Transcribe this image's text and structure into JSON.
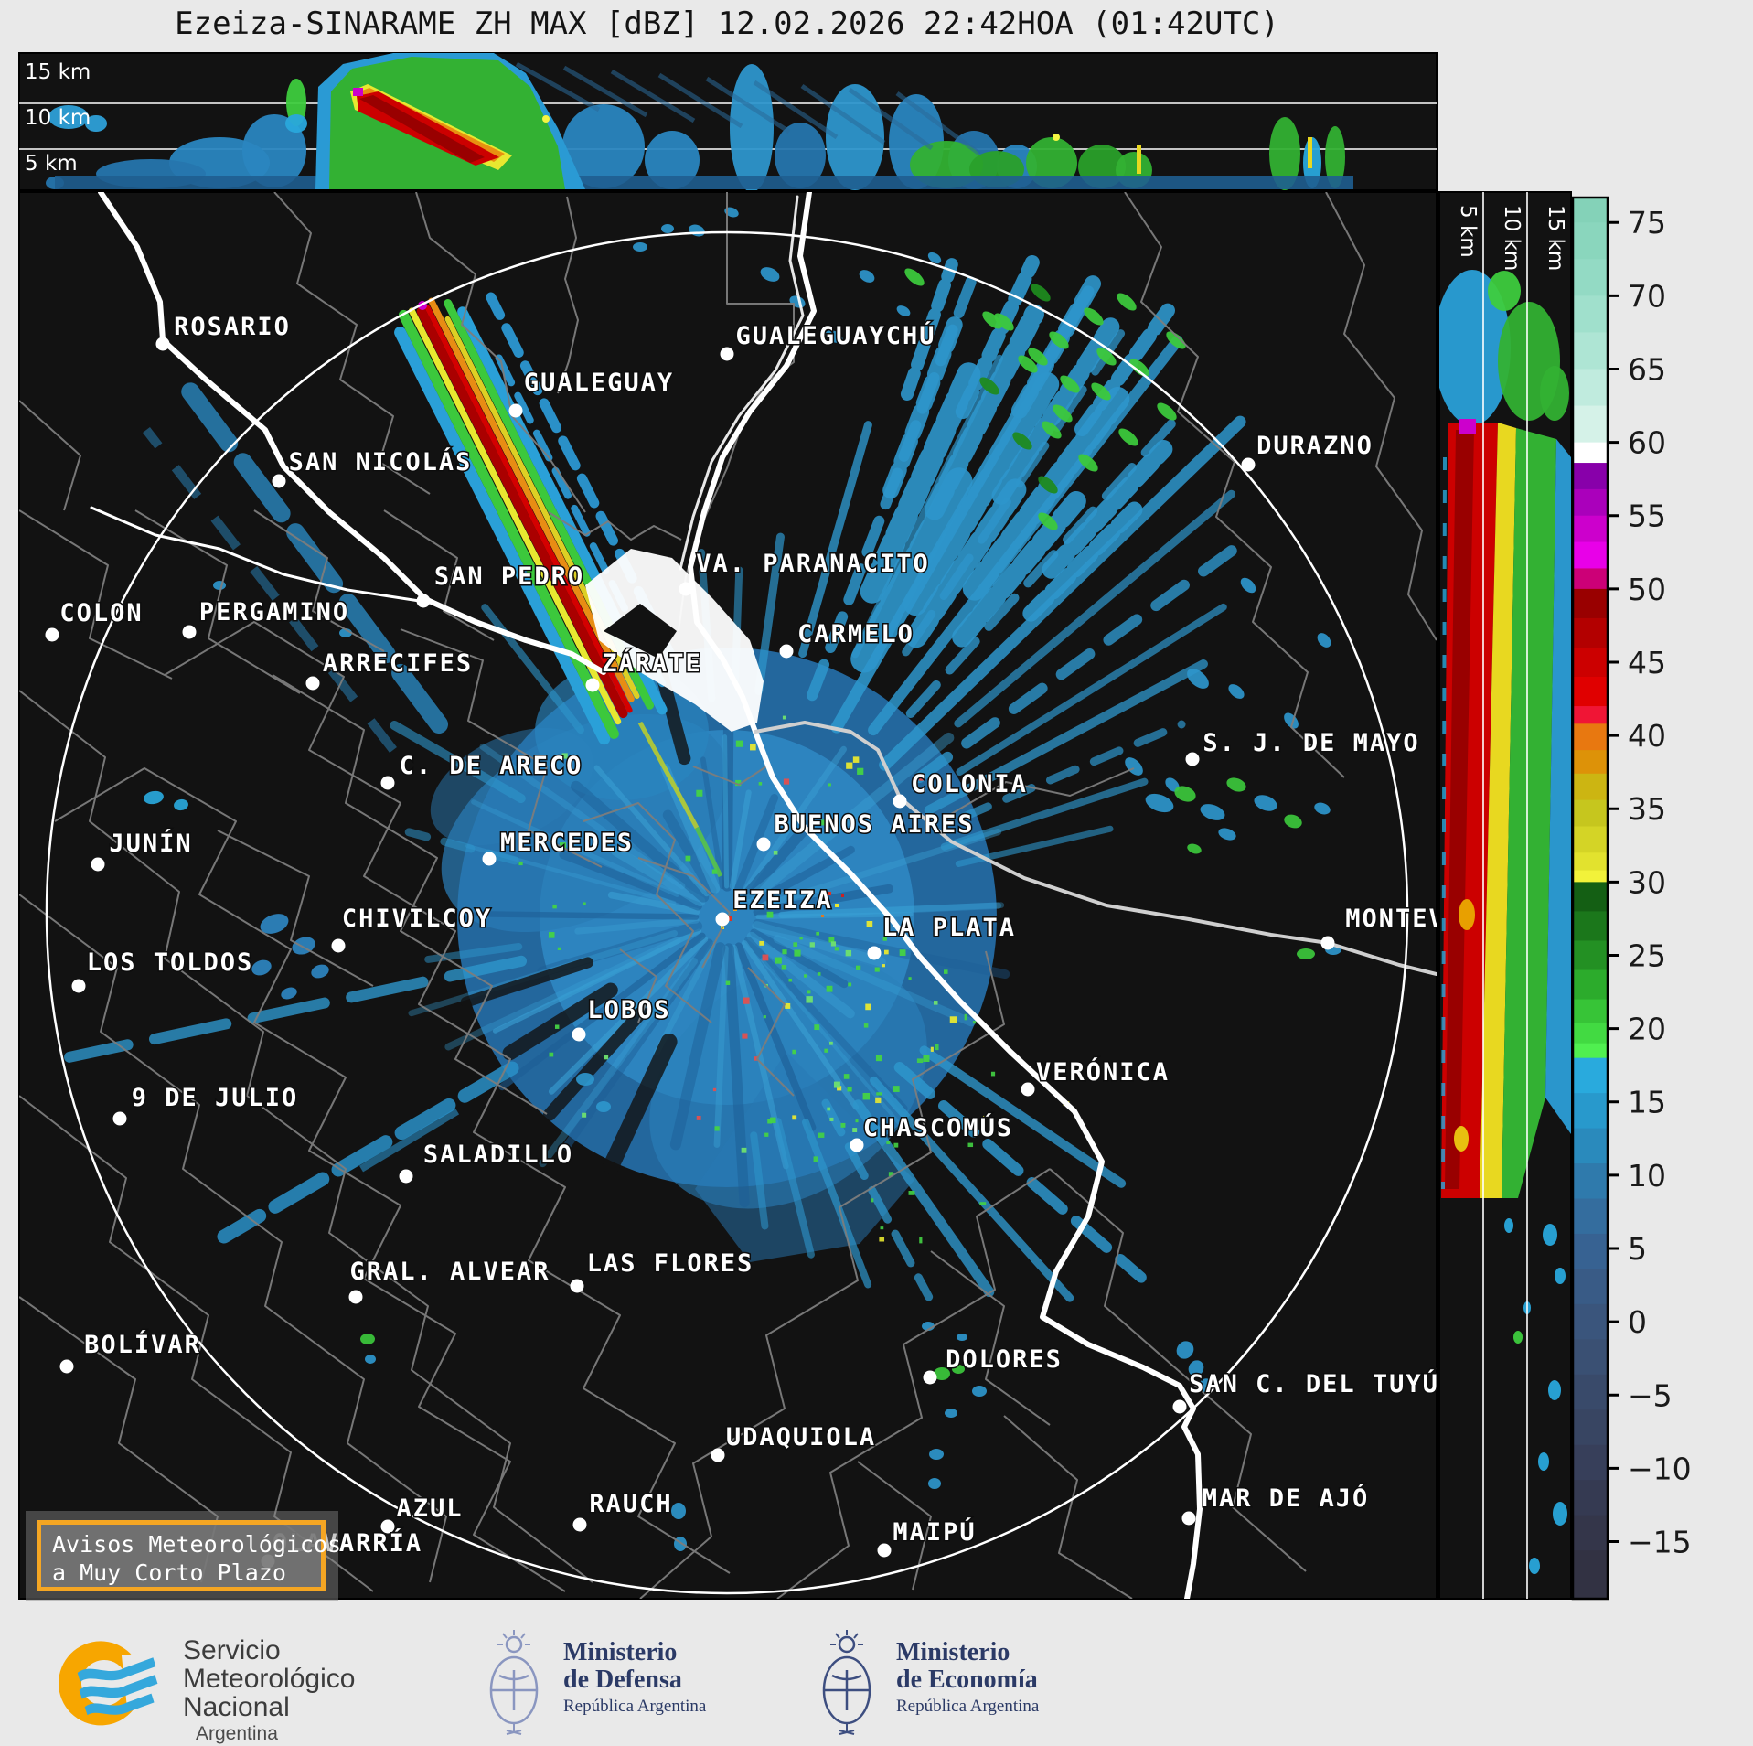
{
  "title": "Ezeiza-SINARAME ZH MAX [dBZ] 12.02.2026 22:42HOA (01:42UTC)",
  "top_profile": {
    "height_labels": [
      "15 km",
      "10 km",
      "5 km"
    ]
  },
  "side_profile": {
    "height_labels": [
      "5 km",
      "10 km",
      "15 km"
    ]
  },
  "colorbar": {
    "unit": "dBZ",
    "ticks": [
      75,
      70,
      65,
      60,
      55,
      50,
      45,
      40,
      35,
      30,
      25,
      20,
      15,
      10,
      5,
      0,
      -5,
      -10,
      -15
    ],
    "segments": [
      [
        76.7,
        75,
        "#84d2b8"
      ],
      [
        75,
        72.5,
        "#8ad6bd"
      ],
      [
        72.5,
        70,
        "#93dac4"
      ],
      [
        70,
        67.5,
        "#a0e0cc"
      ],
      [
        67.5,
        65,
        "#aee5d4"
      ],
      [
        65,
        62.5,
        "#c0ebde"
      ],
      [
        62.5,
        60,
        "#d5f2e8"
      ],
      [
        60,
        58.6,
        "#ffffff"
      ],
      [
        58.6,
        56.8,
        "#8800aa"
      ],
      [
        56.8,
        55,
        "#aa00bb"
      ],
      [
        55,
        53.2,
        "#cc00cc"
      ],
      [
        53.2,
        51.4,
        "#e800e8"
      ],
      [
        51.4,
        50,
        "#cc0077"
      ],
      [
        50,
        48,
        "#990000"
      ],
      [
        48,
        46,
        "#b30000"
      ],
      [
        46,
        44,
        "#cc0000"
      ],
      [
        44,
        42,
        "#e00000"
      ],
      [
        42,
        40.8,
        "#f01535"
      ],
      [
        40.8,
        39,
        "#e87810"
      ],
      [
        39,
        37.4,
        "#dd9208"
      ],
      [
        37.4,
        35.6,
        "#ccb512"
      ],
      [
        35.6,
        33.8,
        "#c6c61e"
      ],
      [
        33.8,
        32,
        "#d4d426"
      ],
      [
        32,
        30.8,
        "#e2e22e"
      ],
      [
        30.8,
        30,
        "#f2f23a"
      ],
      [
        30,
        28,
        "#145f14"
      ],
      [
        28,
        26,
        "#1b771b"
      ],
      [
        26,
        24,
        "#239023"
      ],
      [
        24,
        22,
        "#2cab2c"
      ],
      [
        22,
        20.4,
        "#37c437"
      ],
      [
        20.4,
        19,
        "#42da42"
      ],
      [
        19,
        18,
        "#50ef50"
      ],
      [
        18,
        15.6,
        "#29aadd"
      ],
      [
        15.6,
        13.2,
        "#2899cc"
      ],
      [
        13.2,
        10.8,
        "#2a8abc"
      ],
      [
        10.8,
        8.4,
        "#2f7aac"
      ],
      [
        8.4,
        6,
        "#346d9e"
      ],
      [
        6,
        3.6,
        "#376292"
      ],
      [
        3.6,
        1.2,
        "#395b86"
      ],
      [
        1.2,
        -1.2,
        "#3a557c"
      ],
      [
        -1.2,
        -3.6,
        "#3a5073"
      ],
      [
        -3.6,
        -6,
        "#394a6a"
      ],
      [
        -6,
        -8.4,
        "#384562"
      ],
      [
        -8.4,
        -10.8,
        "#373f5a"
      ],
      [
        -10.8,
        -13.2,
        "#353a52"
      ],
      [
        -13.2,
        -15.6,
        "#34364a"
      ],
      [
        -15.6,
        -18.9,
        "#323243"
      ]
    ]
  },
  "map": {
    "cities": [
      {
        "name": "ROSARIO",
        "dot": [
          178,
          376
        ],
        "label": [
          254,
          357
        ]
      },
      {
        "name": "GUALEGUAYCHÚ",
        "dot": [
          795,
          387
        ],
        "label": [
          914,
          367
        ]
      },
      {
        "name": "GUALEGUAY",
        "dot": [
          564,
          449
        ],
        "label": [
          655,
          418
        ]
      },
      {
        "name": "SAN NICOLÁS",
        "dot": [
          305,
          526
        ],
        "label": [
          416,
          505
        ]
      },
      {
        "name": "DURAZNO",
        "dot": [
          1365,
          508
        ],
        "label": [
          1438,
          487
        ]
      },
      {
        "name": "SAN PEDRO",
        "dot": [
          463,
          657
        ],
        "label": [
          557,
          630
        ]
      },
      {
        "name": "VA. PARANACITO",
        "dot": [
          750,
          644
        ],
        "label": [
          889,
          616
        ]
      },
      {
        "name": "COLON",
        "dot": [
          57,
          694
        ],
        "label": [
          111,
          670
        ]
      },
      {
        "name": "PERGAMINO",
        "dot": [
          207,
          691
        ],
        "label": [
          300,
          669
        ]
      },
      {
        "name": "ARRECIFES",
        "dot": [
          342,
          747
        ],
        "label": [
          435,
          725
        ]
      },
      {
        "name": "ZÁRATE",
        "dot": [
          648,
          749
        ],
        "label": [
          713,
          725
        ]
      },
      {
        "name": "CARMELO",
        "dot": [
          860,
          712
        ],
        "label": [
          936,
          693
        ]
      },
      {
        "name": "C. DE ARECO",
        "dot": [
          424,
          856
        ],
        "label": [
          537,
          837
        ]
      },
      {
        "name": "COLONIA",
        "dot": [
          984,
          876
        ],
        "label": [
          1060,
          857
        ]
      },
      {
        "name": "S. J. DE MAYO",
        "dot": [
          1304,
          830
        ],
        "label": [
          1434,
          812
        ]
      },
      {
        "name": "JUNÍN",
        "dot": [
          107,
          945
        ],
        "label": [
          165,
          922
        ]
      },
      {
        "name": "MERCEDES",
        "dot": [
          535,
          939
        ],
        "label": [
          620,
          921
        ]
      },
      {
        "name": "BUENOS AIRES",
        "dot": [
          835,
          923
        ],
        "label": [
          956,
          901
        ]
      },
      {
        "name": "EZEIZA",
        "dot": [
          790,
          1005
        ],
        "label": [
          856,
          984
        ]
      },
      {
        "name": "CHIVILCOY",
        "dot": [
          370,
          1034
        ],
        "label": [
          456,
          1004
        ]
      },
      {
        "name": "LA PLATA",
        "dot": [
          956,
          1042
        ],
        "label": [
          1038,
          1014
        ]
      },
      {
        "name": "LOS TOLDOS",
        "dot": [
          86,
          1078
        ],
        "label": [
          186,
          1052
        ]
      },
      {
        "name": "MONTEV",
        "dot": [
          1452,
          1031
        ],
        "label": [
          1526,
          1004
        ]
      },
      {
        "name": "LOBOS",
        "dot": [
          633,
          1131
        ],
        "label": [
          688,
          1104
        ]
      },
      {
        "name": "VERÓNICA",
        "dot": [
          1124,
          1191
        ],
        "label": [
          1206,
          1172
        ]
      },
      {
        "name": "9 DE JULIO",
        "dot": [
          131,
          1223
        ],
        "label": [
          235,
          1200
        ]
      },
      {
        "name": "CHASCOMÚS",
        "dot": [
          937,
          1252
        ],
        "label": [
          1026,
          1233
        ]
      },
      {
        "name": "SALADILLO",
        "dot": [
          444,
          1286
        ],
        "label": [
          545,
          1262
        ]
      },
      {
        "name": "GRAL. ALVEAR",
        "dot": [
          389,
          1418
        ],
        "label": [
          492,
          1390
        ]
      },
      {
        "name": "LAS FLORES",
        "dot": [
          631,
          1406
        ],
        "label": [
          733,
          1381
        ]
      },
      {
        "name": "BOLÍVAR",
        "dot": [
          73,
          1494
        ],
        "label": [
          156,
          1470
        ]
      },
      {
        "name": "DOLORES",
        "dot": [
          1017,
          1506
        ],
        "label": [
          1098,
          1486
        ]
      },
      {
        "name": "SAN C. DEL TUYÚ",
        "dot": [
          1290,
          1538
        ],
        "label": [
          1437,
          1513
        ]
      },
      {
        "name": "UDAQUIOLA",
        "dot": [
          785,
          1591
        ],
        "label": [
          876,
          1571
        ]
      },
      {
        "name": "AZUL",
        "dot": [
          424,
          1669
        ],
        "label": [
          470,
          1649
        ]
      },
      {
        "name": "RAUCH",
        "dot": [
          634,
          1667
        ],
        "label": [
          690,
          1644
        ]
      },
      {
        "name": "MAR DE AJÓ",
        "dot": [
          1300,
          1660
        ],
        "label": [
          1406,
          1638
        ]
      },
      {
        "name": "MAIPÚ",
        "dot": [
          967,
          1695
        ],
        "label": [
          1022,
          1675
        ]
      },
      {
        "name": "OLAVARRÍA",
        "dot": [
          293,
          1707
        ],
        "label": [
          380,
          1687
        ]
      }
    ]
  },
  "advisory": {
    "line1": "Avisos Meteorológicos",
    "line2": "a Muy Corto Plazo"
  },
  "footer": {
    "smn": {
      "line1": "Servicio",
      "line2": "Meteorológico",
      "line3": "Nacional",
      "line4": "Argentina"
    },
    "defensa": {
      "line1": "Ministerio",
      "line2": "de Defensa",
      "line3": "República Argentina"
    },
    "economia": {
      "line1": "Ministerio",
      "line2": "de Economía",
      "line3": "República Argentina"
    }
  },
  "colors": {
    "advisory_border": "#F5A623",
    "logo_orange": "#f7a600",
    "logo_blue": "#35a8dc"
  }
}
